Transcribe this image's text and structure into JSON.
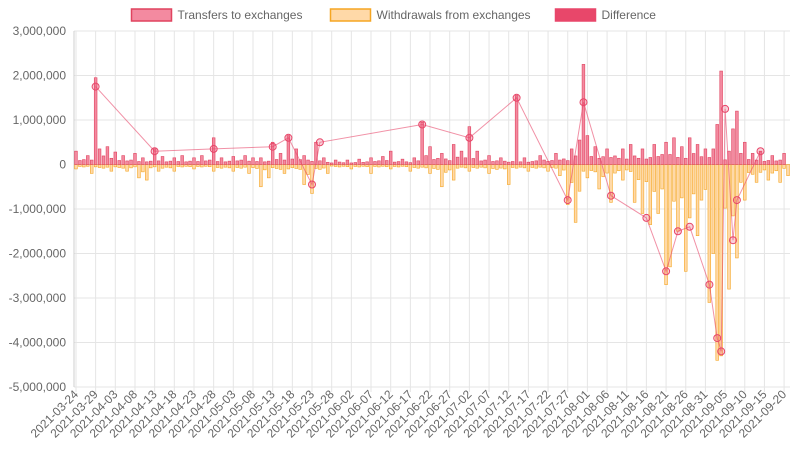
{
  "chart_data": {
    "type": "bar",
    "title": "",
    "xlabel": "",
    "ylabel": "",
    "ylim": [
      -5000000,
      3000000
    ],
    "y_ticks": [
      "3,000,000",
      "2,000,000",
      "1,000,000",
      "0",
      "-1,000,000",
      "-2,000,000",
      "-3,000,000",
      "-4,000,000",
      "-5,000,000"
    ],
    "y_tick_values": [
      3000000,
      2000000,
      1000000,
      0,
      -1000000,
      -2000000,
      -3000000,
      -4000000,
      -5000000
    ],
    "x_start": "2021-03-24",
    "x_end": "2021-09-21",
    "x_ticks": [
      "2021-03-24",
      "2021-03-29",
      "2021-04-03",
      "2021-04-08",
      "2021-04-13",
      "2021-04-18",
      "2021-04-23",
      "2021-04-28",
      "2021-05-03",
      "2021-05-08",
      "2021-05-13",
      "2021-05-18",
      "2021-05-23",
      "2021-05-28",
      "2021-06-02",
      "2021-06-07",
      "2021-06-12",
      "2021-06-17",
      "2021-06-22",
      "2021-06-27",
      "2021-07-02",
      "2021-07-07",
      "2021-07-12",
      "2021-07-17",
      "2021-07-22",
      "2021-07-27",
      "2021-08-01",
      "2021-08-06",
      "2021-08-11",
      "2021-08-16",
      "2021-08-21",
      "2021-08-26",
      "2021-08-31",
      "2021-09-05",
      "2021-09-10",
      "2021-09-15",
      "2021-09-20"
    ],
    "grid": true,
    "legend_position": "top",
    "series": [
      {
        "name": "Transfers to exchanges",
        "color": "#f38aa0",
        "border": "#e0435f",
        "values": [
          [
            "2021-03-24",
            300000
          ],
          [
            "2021-03-27",
            200000
          ],
          [
            "2021-03-29",
            1950000
          ],
          [
            "2021-03-30",
            350000
          ],
          [
            "2021-04-01",
            400000
          ],
          [
            "2021-04-03",
            280000
          ],
          [
            "2021-04-05",
            200000
          ],
          [
            "2021-04-08",
            250000
          ],
          [
            "2021-04-10",
            150000
          ],
          [
            "2021-04-13",
            350000
          ],
          [
            "2021-04-15",
            180000
          ],
          [
            "2021-04-18",
            150000
          ],
          [
            "2021-04-20",
            200000
          ],
          [
            "2021-04-23",
            150000
          ],
          [
            "2021-04-25",
            200000
          ],
          [
            "2021-04-28",
            600000
          ],
          [
            "2021-04-30",
            150000
          ],
          [
            "2021-05-03",
            180000
          ],
          [
            "2021-05-06",
            200000
          ],
          [
            "2021-05-08",
            150000
          ],
          [
            "2021-05-10",
            150000
          ],
          [
            "2021-05-13",
            500000
          ],
          [
            "2021-05-15",
            250000
          ],
          [
            "2021-05-17",
            650000
          ],
          [
            "2021-05-19",
            350000
          ],
          [
            "2021-05-21",
            200000
          ],
          [
            "2021-05-24",
            500000
          ],
          [
            "2021-05-26",
            150000
          ],
          [
            "2021-05-29",
            100000
          ],
          [
            "2021-06-01",
            100000
          ],
          [
            "2021-06-04",
            120000
          ],
          [
            "2021-06-07",
            150000
          ],
          [
            "2021-06-10",
            180000
          ],
          [
            "2021-06-12",
            300000
          ],
          [
            "2021-06-15",
            120000
          ],
          [
            "2021-06-18",
            150000
          ],
          [
            "2021-06-20",
            950000
          ],
          [
            "2021-06-22",
            400000
          ],
          [
            "2021-06-25",
            250000
          ],
          [
            "2021-06-28",
            450000
          ],
          [
            "2021-06-30",
            300000
          ],
          [
            "2021-07-02",
            850000
          ],
          [
            "2021-07-04",
            300000
          ],
          [
            "2021-07-07",
            200000
          ],
          [
            "2021-07-10",
            150000
          ],
          [
            "2021-07-14",
            1550000
          ],
          [
            "2021-07-16",
            150000
          ],
          [
            "2021-07-20",
            200000
          ],
          [
            "2021-07-24",
            250000
          ],
          [
            "2021-07-28",
            350000
          ],
          [
            "2021-07-30",
            550000
          ],
          [
            "2021-07-31",
            2250000
          ],
          [
            "2021-08-01",
            650000
          ],
          [
            "2021-08-03",
            400000
          ],
          [
            "2021-08-06",
            350000
          ],
          [
            "2021-08-10",
            350000
          ],
          [
            "2021-08-12",
            450000
          ],
          [
            "2021-08-15",
            350000
          ],
          [
            "2021-08-18",
            450000
          ],
          [
            "2021-08-21",
            500000
          ],
          [
            "2021-08-23",
            600000
          ],
          [
            "2021-08-25",
            400000
          ],
          [
            "2021-08-27",
            600000
          ],
          [
            "2021-08-29",
            450000
          ],
          [
            "2021-08-31",
            350000
          ],
          [
            "2021-09-02",
            350000
          ],
          [
            "2021-09-03",
            900000
          ],
          [
            "2021-09-04",
            2100000
          ],
          [
            "2021-09-06",
            300000
          ],
          [
            "2021-09-07",
            800000
          ],
          [
            "2021-09-08",
            1200000
          ],
          [
            "2021-09-10",
            500000
          ],
          [
            "2021-09-12",
            250000
          ],
          [
            "2021-09-14",
            300000
          ],
          [
            "2021-09-17",
            200000
          ],
          [
            "2021-09-20",
            250000
          ]
        ]
      },
      {
        "name": "Withdrawals from exchanges",
        "color": "#ffd9a8",
        "border": "#f5a623",
        "values": [
          [
            "2021-03-24",
            -100000
          ],
          [
            "2021-03-28",
            -200000
          ],
          [
            "2021-04-02",
            -150000
          ],
          [
            "2021-04-06",
            -150000
          ],
          [
            "2021-04-09",
            -300000
          ],
          [
            "2021-04-11",
            -350000
          ],
          [
            "2021-04-14",
            -150000
          ],
          [
            "2021-04-18",
            -150000
          ],
          [
            "2021-04-23",
            -100000
          ],
          [
            "2021-04-28",
            -150000
          ],
          [
            "2021-05-03",
            -150000
          ],
          [
            "2021-05-07",
            -200000
          ],
          [
            "2021-05-10",
            -500000
          ],
          [
            "2021-05-12",
            -300000
          ],
          [
            "2021-05-16",
            -200000
          ],
          [
            "2021-05-21",
            -450000
          ],
          [
            "2021-05-23",
            -650000
          ],
          [
            "2021-05-27",
            -200000
          ],
          [
            "2021-06-02",
            -100000
          ],
          [
            "2021-06-07",
            -200000
          ],
          [
            "2021-06-12",
            -100000
          ],
          [
            "2021-06-17",
            -150000
          ],
          [
            "2021-06-22",
            -200000
          ],
          [
            "2021-06-25",
            -500000
          ],
          [
            "2021-06-28",
            -350000
          ],
          [
            "2021-07-02",
            -150000
          ],
          [
            "2021-07-07",
            -200000
          ],
          [
            "2021-07-12",
            -450000
          ],
          [
            "2021-07-17",
            -150000
          ],
          [
            "2021-07-22",
            -150000
          ],
          [
            "2021-07-25",
            -250000
          ],
          [
            "2021-07-27",
            -900000
          ],
          [
            "2021-07-29",
            -1300000
          ],
          [
            "2021-07-30",
            -600000
          ],
          [
            "2021-08-01",
            -300000
          ],
          [
            "2021-08-04",
            -550000
          ],
          [
            "2021-08-07",
            -850000
          ],
          [
            "2021-08-10",
            -350000
          ],
          [
            "2021-08-13",
            -850000
          ],
          [
            "2021-08-15",
            -1100000
          ],
          [
            "2021-08-17",
            -1350000
          ],
          [
            "2021-08-19",
            -1100000
          ],
          [
            "2021-08-21",
            -2700000
          ],
          [
            "2021-08-22",
            -2300000
          ],
          [
            "2021-08-24",
            -1500000
          ],
          [
            "2021-08-26",
            -2400000
          ],
          [
            "2021-08-27",
            -1200000
          ],
          [
            "2021-08-29",
            -1600000
          ],
          [
            "2021-09-01",
            -3100000
          ],
          [
            "2021-09-02",
            -2000000
          ],
          [
            "2021-09-03",
            -4400000
          ],
          [
            "2021-09-04",
            -4300000
          ],
          [
            "2021-09-06",
            -2800000
          ],
          [
            "2021-09-08",
            -2100000
          ],
          [
            "2021-09-10",
            -800000
          ],
          [
            "2021-09-13",
            -400000
          ],
          [
            "2021-09-16",
            -350000
          ],
          [
            "2021-09-19",
            -400000
          ],
          [
            "2021-09-21",
            -250000
          ]
        ]
      },
      {
        "name": "Difference",
        "color": "#e8476a",
        "border": "#e8476a",
        "values": [
          [
            "2021-03-29",
            1750000
          ],
          [
            "2021-04-13",
            300000
          ],
          [
            "2021-04-28",
            350000
          ],
          [
            "2021-05-13",
            400000
          ],
          [
            "2021-05-17",
            600000
          ],
          [
            "2021-05-23",
            -450000
          ],
          [
            "2021-05-25",
            500000
          ],
          [
            "2021-06-20",
            900000
          ],
          [
            "2021-07-02",
            600000
          ],
          [
            "2021-07-14",
            1500000
          ],
          [
            "2021-07-31",
            1400000
          ],
          [
            "2021-07-27",
            -800000
          ],
          [
            "2021-08-07",
            -700000
          ],
          [
            "2021-08-16",
            -1200000
          ],
          [
            "2021-08-21",
            -2400000
          ],
          [
            "2021-08-24",
            -1500000
          ],
          [
            "2021-08-27",
            -1400000
          ],
          [
            "2021-09-01",
            -2700000
          ],
          [
            "2021-09-03",
            -3900000
          ],
          [
            "2021-09-04",
            -4200000
          ],
          [
            "2021-09-05",
            1250000
          ],
          [
            "2021-09-07",
            -1700000
          ],
          [
            "2021-09-08",
            -800000
          ],
          [
            "2021-09-14",
            300000
          ]
        ]
      }
    ]
  }
}
